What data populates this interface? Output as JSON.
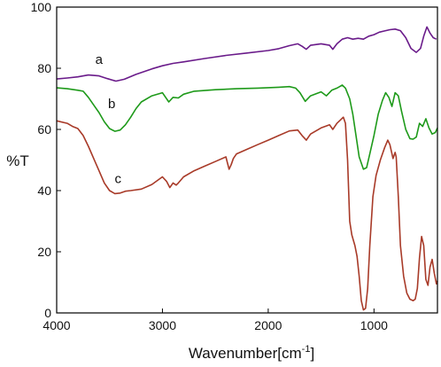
{
  "chart_data": {
    "type": "line",
    "title": "",
    "xlabel": "Wavenumber[cm",
    "xlabel_superscript": "-1",
    "xlabel_close": "]",
    "ylabel": "%T",
    "xlim": [
      4000,
      400
    ],
    "ylim": [
      0,
      100
    ],
    "x_reversed": true,
    "grid": false,
    "legend": "labels on curves",
    "x_ticks": [
      "4000",
      "3000",
      "2000",
      "1000"
    ],
    "x_tick_values": [
      4000,
      3000,
      2000,
      1000
    ],
    "y_ticks": [
      "0",
      "20",
      "40",
      "60",
      "80",
      "100"
    ],
    "y_tick_values": [
      0,
      20,
      40,
      60,
      80,
      100
    ],
    "series": [
      {
        "name": "a",
        "color": "#6a1b8a",
        "label_at": [
          3600,
          81.5
        ],
        "points": [
          [
            4000,
            76.5
          ],
          [
            3900,
            76.8
          ],
          [
            3800,
            77.2
          ],
          [
            3700,
            77.8
          ],
          [
            3600,
            77.5
          ],
          [
            3520,
            76.6
          ],
          [
            3440,
            75.8
          ],
          [
            3360,
            76.4
          ],
          [
            3250,
            78.0
          ],
          [
            3100,
            79.8
          ],
          [
            3000,
            80.8
          ],
          [
            2900,
            81.6
          ],
          [
            2800,
            82.1
          ],
          [
            2600,
            83.2
          ],
          [
            2400,
            84.2
          ],
          [
            2200,
            85.0
          ],
          [
            2000,
            85.8
          ],
          [
            1900,
            86.4
          ],
          [
            1800,
            87.4
          ],
          [
            1720,
            88.0
          ],
          [
            1680,
            87.2
          ],
          [
            1640,
            86.2
          ],
          [
            1600,
            87.5
          ],
          [
            1500,
            88.0
          ],
          [
            1420,
            87.5
          ],
          [
            1390,
            86.2
          ],
          [
            1350,
            88.0
          ],
          [
            1300,
            89.5
          ],
          [
            1250,
            90.0
          ],
          [
            1200,
            89.5
          ],
          [
            1150,
            89.8
          ],
          [
            1100,
            89.5
          ],
          [
            1050,
            90.5
          ],
          [
            1000,
            91.0
          ],
          [
            950,
            91.8
          ],
          [
            900,
            92.2
          ],
          [
            850,
            92.6
          ],
          [
            800,
            92.8
          ],
          [
            750,
            92.3
          ],
          [
            700,
            90.0
          ],
          [
            650,
            86.5
          ],
          [
            600,
            85.2
          ],
          [
            560,
            86.5
          ],
          [
            530,
            90.5
          ],
          [
            500,
            93.5
          ],
          [
            470,
            91.5
          ],
          [
            440,
            90.0
          ],
          [
            410,
            89.5
          ]
        ]
      },
      {
        "name": "b",
        "color": "#1e9a1a",
        "label_at": [
          3480,
          67.0
        ],
        "points": [
          [
            4000,
            73.6
          ],
          [
            3900,
            73.3
          ],
          [
            3800,
            72.8
          ],
          [
            3750,
            72.5
          ],
          [
            3700,
            70.5
          ],
          [
            3650,
            68.0
          ],
          [
            3600,
            65.5
          ],
          [
            3550,
            62.5
          ],
          [
            3500,
            60.3
          ],
          [
            3450,
            59.4
          ],
          [
            3400,
            59.8
          ],
          [
            3350,
            61.5
          ],
          [
            3300,
            64.0
          ],
          [
            3250,
            66.8
          ],
          [
            3200,
            69.0
          ],
          [
            3100,
            71.0
          ],
          [
            3000,
            72.0
          ],
          [
            2940,
            69.0
          ],
          [
            2900,
            70.5
          ],
          [
            2850,
            70.3
          ],
          [
            2800,
            71.5
          ],
          [
            2700,
            72.5
          ],
          [
            2500,
            73.0
          ],
          [
            2300,
            73.3
          ],
          [
            2100,
            73.5
          ],
          [
            1900,
            73.8
          ],
          [
            1800,
            74.0
          ],
          [
            1740,
            73.5
          ],
          [
            1700,
            72.0
          ],
          [
            1650,
            69.2
          ],
          [
            1600,
            71.0
          ],
          [
            1500,
            72.3
          ],
          [
            1450,
            71.0
          ],
          [
            1400,
            72.8
          ],
          [
            1350,
            73.5
          ],
          [
            1300,
            74.5
          ],
          [
            1270,
            73.5
          ],
          [
            1230,
            70.0
          ],
          [
            1200,
            65.0
          ],
          [
            1170,
            58.0
          ],
          [
            1140,
            51.0
          ],
          [
            1100,
            47.0
          ],
          [
            1070,
            47.5
          ],
          [
            1040,
            52.0
          ],
          [
            1000,
            58.0
          ],
          [
            960,
            65.0
          ],
          [
            920,
            69.5
          ],
          [
            890,
            72.0
          ],
          [
            860,
            70.5
          ],
          [
            830,
            67.5
          ],
          [
            800,
            72.0
          ],
          [
            770,
            71.0
          ],
          [
            740,
            66.0
          ],
          [
            700,
            60.0
          ],
          [
            660,
            57.0
          ],
          [
            630,
            56.8
          ],
          [
            600,
            57.5
          ],
          [
            570,
            62.0
          ],
          [
            540,
            61.0
          ],
          [
            510,
            63.5
          ],
          [
            480,
            60.5
          ],
          [
            450,
            58.5
          ],
          [
            420,
            59.0
          ],
          [
            400,
            60.5
          ]
        ]
      },
      {
        "name": "c",
        "color": "#a83a28",
        "label_at": [
          3420,
          42.5
        ],
        "points": [
          [
            4000,
            62.8
          ],
          [
            3900,
            62.0
          ],
          [
            3850,
            61.0
          ],
          [
            3800,
            60.3
          ],
          [
            3750,
            58.0
          ],
          [
            3700,
            54.5
          ],
          [
            3650,
            50.5
          ],
          [
            3600,
            46.5
          ],
          [
            3550,
            42.5
          ],
          [
            3500,
            40.0
          ],
          [
            3450,
            39.0
          ],
          [
            3400,
            39.2
          ],
          [
            3350,
            39.8
          ],
          [
            3300,
            40.0
          ],
          [
            3200,
            40.5
          ],
          [
            3100,
            42.0
          ],
          [
            3000,
            44.5
          ],
          [
            2960,
            43.0
          ],
          [
            2930,
            41.0
          ],
          [
            2900,
            42.5
          ],
          [
            2870,
            41.8
          ],
          [
            2850,
            42.5
          ],
          [
            2800,
            44.5
          ],
          [
            2700,
            46.5
          ],
          [
            2600,
            48.0
          ],
          [
            2500,
            49.5
          ],
          [
            2400,
            51.0
          ],
          [
            2370,
            47.0
          ],
          [
            2350,
            48.5
          ],
          [
            2330,
            50.5
          ],
          [
            2300,
            52.0
          ],
          [
            2200,
            53.5
          ],
          [
            2100,
            55.0
          ],
          [
            2000,
            56.5
          ],
          [
            1900,
            58.0
          ],
          [
            1800,
            59.5
          ],
          [
            1720,
            59.8
          ],
          [
            1680,
            58.0
          ],
          [
            1640,
            56.5
          ],
          [
            1600,
            58.5
          ],
          [
            1500,
            60.5
          ],
          [
            1420,
            61.5
          ],
          [
            1390,
            60.0
          ],
          [
            1350,
            62.0
          ],
          [
            1320,
            63.0
          ],
          [
            1290,
            64.0
          ],
          [
            1270,
            62.0
          ],
          [
            1250,
            50.0
          ],
          [
            1230,
            30.0
          ],
          [
            1210,
            25.5
          ],
          [
            1180,
            22.0
          ],
          [
            1160,
            18.5
          ],
          [
            1140,
            12.0
          ],
          [
            1120,
            4.0
          ],
          [
            1100,
            1.0
          ],
          [
            1080,
            1.5
          ],
          [
            1060,
            8.0
          ],
          [
            1040,
            22.0
          ],
          [
            1010,
            38.0
          ],
          [
            980,
            45.0
          ],
          [
            940,
            50.0
          ],
          [
            900,
            54.0
          ],
          [
            870,
            56.5
          ],
          [
            850,
            55.0
          ],
          [
            820,
            50.5
          ],
          [
            800,
            52.5
          ],
          [
            790,
            51.0
          ],
          [
            770,
            38.0
          ],
          [
            750,
            22.0
          ],
          [
            720,
            12.0
          ],
          [
            690,
            6.5
          ],
          [
            660,
            4.5
          ],
          [
            630,
            4.0
          ],
          [
            610,
            4.5
          ],
          [
            590,
            8.0
          ],
          [
            570,
            18.0
          ],
          [
            550,
            25.0
          ],
          [
            530,
            22.0
          ],
          [
            510,
            11.0
          ],
          [
            490,
            9.0
          ],
          [
            470,
            15.0
          ],
          [
            450,
            17.5
          ],
          [
            430,
            13.0
          ],
          [
            410,
            9.5
          ],
          [
            400,
            10.5
          ]
        ]
      }
    ]
  }
}
